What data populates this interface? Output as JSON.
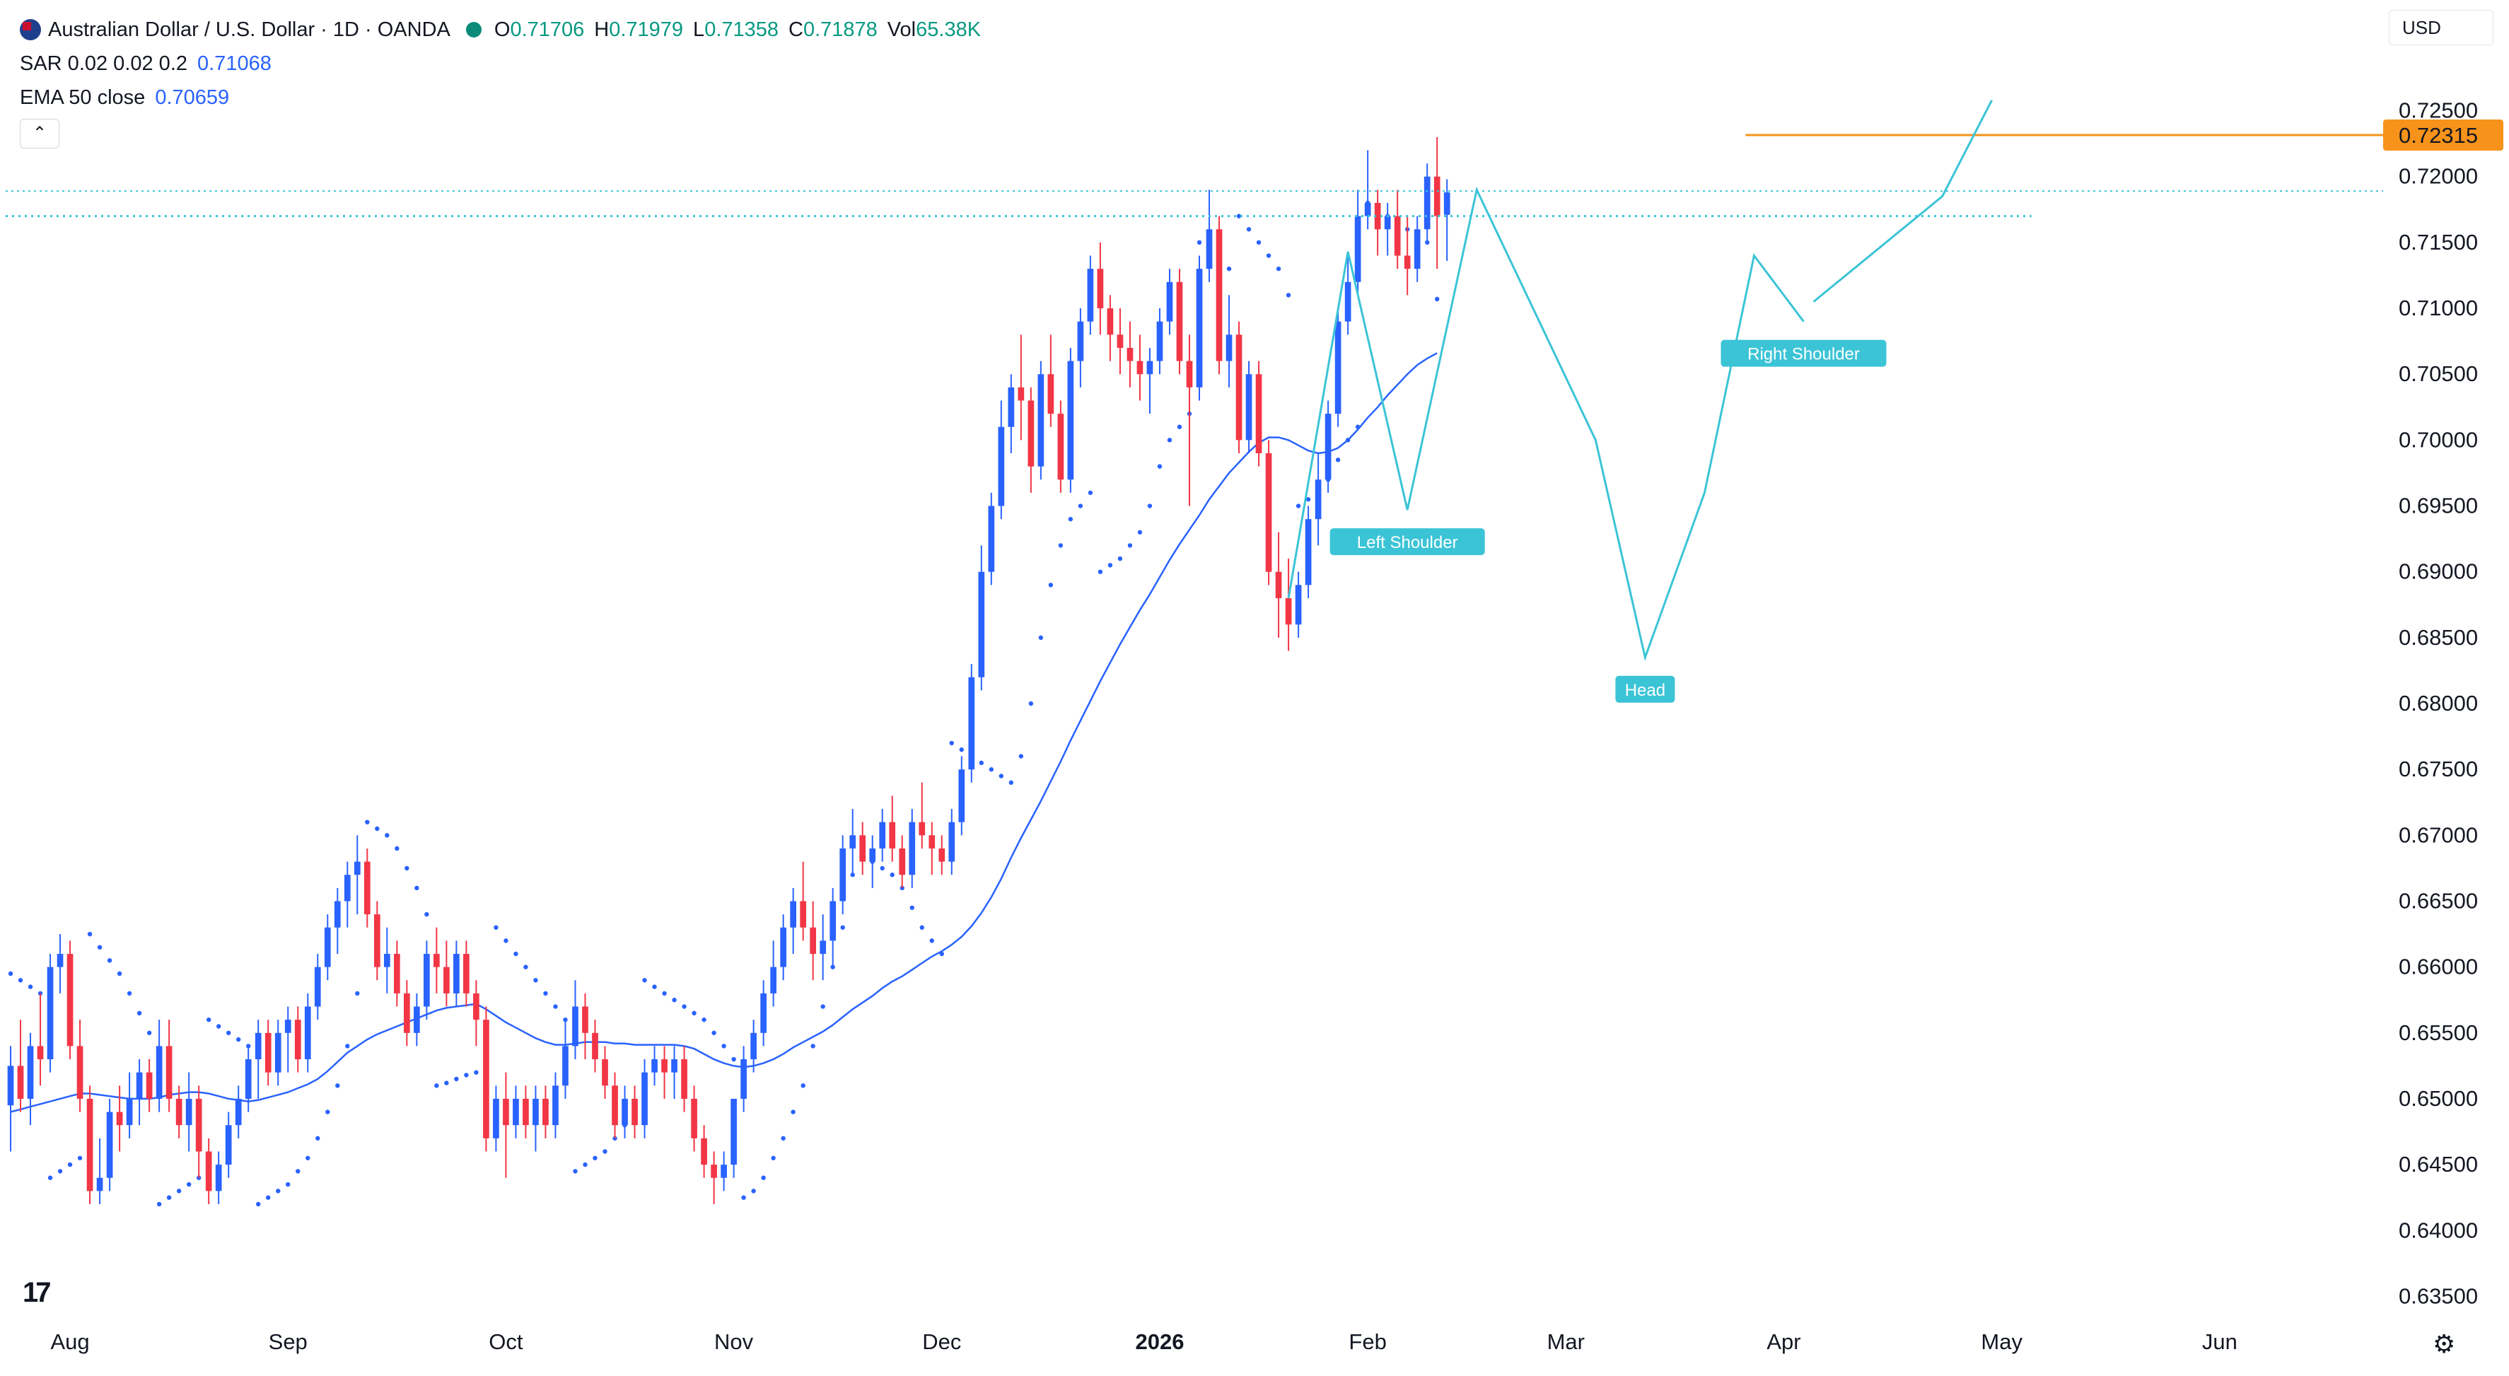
{
  "header": {
    "symbol_title": "Australian Dollar / U.S. Dollar · 1D · OANDA",
    "open_label": "O",
    "open_value": "0.71706",
    "high_label": "H",
    "high_value": "0.71979",
    "low_label": "L",
    "low_value": "0.71358",
    "close_label": "C",
    "close_value": "0.71878",
    "vol_label": "Vol",
    "vol_value": "65.38K",
    "collapse_icon": "chevron-up-icon"
  },
  "indicators": {
    "sar": {
      "name": "SAR 0.02 0.02 0.2",
      "value": "0.71068"
    },
    "ema": {
      "name": "EMA 50 close",
      "value": "0.70659"
    }
  },
  "toolbar": {
    "currency_label": "USD",
    "settings_icon": "gear-icon",
    "logo_text": "17"
  },
  "colors": {
    "up": "#2962ff",
    "down": "#f23645",
    "ema": "#2962ff",
    "sar": "#2962ff",
    "pattern": "#3bc4d6",
    "resistance": "#f7931a",
    "neckline": "#3bc4d6",
    "grid_text": "#131722"
  },
  "chart_data": {
    "type": "candlestick",
    "title": "Australian Dollar / U.S. Dollar · 1D · OANDA",
    "ylim": [
      0.6325,
      0.7275
    ],
    "price_axis_labels": [
      "0.72500",
      "0.72000",
      "0.71500",
      "0.71000",
      "0.70500",
      "0.70000",
      "0.69500",
      "0.69000",
      "0.68500",
      "0.68000",
      "0.67500",
      "0.67000",
      "0.66500",
      "0.66000",
      "0.65500",
      "0.65000",
      "0.64500",
      "0.64000",
      "0.63500"
    ],
    "time_axis_labels": [
      {
        "label": "Aug",
        "bold": false,
        "bar": 6
      },
      {
        "label": "Sep",
        "bold": false,
        "bar": 28
      },
      {
        "label": "Oct",
        "bold": false,
        "bar": 50
      },
      {
        "label": "Nov",
        "bold": false,
        "bar": 73
      },
      {
        "label": "Dec",
        "bold": false,
        "bar": 94
      },
      {
        "label": "2026",
        "bold": true,
        "bar": 116
      },
      {
        "label": "Feb",
        "bold": false,
        "bar": 137
      },
      {
        "label": "Mar",
        "bold": false,
        "bar": 157
      },
      {
        "label": "Apr",
        "bold": false,
        "bar": 179
      },
      {
        "label": "May",
        "bold": false,
        "bar": 201
      },
      {
        "label": "Jun",
        "bold": false,
        "bar": 223
      }
    ],
    "candles": [
      [
        0.6495,
        0.654,
        0.646,
        0.6525
      ],
      [
        0.6525,
        0.656,
        0.649,
        0.65
      ],
      [
        0.65,
        0.655,
        0.648,
        0.654
      ],
      [
        0.654,
        0.658,
        0.651,
        0.653
      ],
      [
        0.653,
        0.661,
        0.652,
        0.66
      ],
      [
        0.66,
        0.6625,
        0.658,
        0.661
      ],
      [
        0.661,
        0.662,
        0.653,
        0.654
      ],
      [
        0.654,
        0.656,
        0.649,
        0.65
      ],
      [
        0.65,
        0.651,
        0.642,
        0.643
      ],
      [
        0.643,
        0.647,
        0.642,
        0.644
      ],
      [
        0.644,
        0.65,
        0.643,
        0.649
      ],
      [
        0.649,
        0.651,
        0.646,
        0.648
      ],
      [
        0.648,
        0.652,
        0.647,
        0.65
      ],
      [
        0.65,
        0.653,
        0.648,
        0.652
      ],
      [
        0.652,
        0.653,
        0.649,
        0.65
      ],
      [
        0.65,
        0.656,
        0.649,
        0.654
      ],
      [
        0.654,
        0.656,
        0.649,
        0.65
      ],
      [
        0.65,
        0.651,
        0.647,
        0.648
      ],
      [
        0.648,
        0.652,
        0.646,
        0.65
      ],
      [
        0.65,
        0.651,
        0.644,
        0.646
      ],
      [
        0.646,
        0.647,
        0.642,
        0.643
      ],
      [
        0.643,
        0.646,
        0.642,
        0.645
      ],
      [
        0.645,
        0.649,
        0.644,
        0.648
      ],
      [
        0.648,
        0.651,
        0.647,
        0.65
      ],
      [
        0.65,
        0.654,
        0.649,
        0.653
      ],
      [
        0.653,
        0.656,
        0.65,
        0.655
      ],
      [
        0.655,
        0.656,
        0.651,
        0.652
      ],
      [
        0.652,
        0.656,
        0.651,
        0.655
      ],
      [
        0.655,
        0.657,
        0.652,
        0.656
      ],
      [
        0.656,
        0.657,
        0.652,
        0.653
      ],
      [
        0.653,
        0.658,
        0.652,
        0.657
      ],
      [
        0.657,
        0.661,
        0.656,
        0.66
      ],
      [
        0.66,
        0.664,
        0.659,
        0.663
      ],
      [
        0.663,
        0.666,
        0.661,
        0.665
      ],
      [
        0.665,
        0.668,
        0.663,
        0.667
      ],
      [
        0.667,
        0.67,
        0.664,
        0.668
      ],
      [
        0.668,
        0.669,
        0.663,
        0.664
      ],
      [
        0.664,
        0.665,
        0.659,
        0.66
      ],
      [
        0.66,
        0.663,
        0.658,
        0.661
      ],
      [
        0.661,
        0.662,
        0.657,
        0.658
      ],
      [
        0.658,
        0.659,
        0.654,
        0.655
      ],
      [
        0.655,
        0.658,
        0.654,
        0.657
      ],
      [
        0.657,
        0.662,
        0.656,
        0.661
      ],
      [
        0.661,
        0.663,
        0.658,
        0.66
      ],
      [
        0.66,
        0.662,
        0.657,
        0.658
      ],
      [
        0.658,
        0.662,
        0.657,
        0.661
      ],
      [
        0.661,
        0.662,
        0.657,
        0.658
      ],
      [
        0.658,
        0.659,
        0.654,
        0.656
      ],
      [
        0.656,
        0.657,
        0.646,
        0.647
      ],
      [
        0.647,
        0.651,
        0.646,
        0.65
      ],
      [
        0.65,
        0.652,
        0.644,
        0.648
      ],
      [
        0.648,
        0.651,
        0.647,
        0.65
      ],
      [
        0.65,
        0.651,
        0.647,
        0.648
      ],
      [
        0.648,
        0.651,
        0.646,
        0.65
      ],
      [
        0.65,
        0.651,
        0.647,
        0.648
      ],
      [
        0.648,
        0.652,
        0.647,
        0.651
      ],
      [
        0.651,
        0.656,
        0.65,
        0.654
      ],
      [
        0.654,
        0.659,
        0.653,
        0.657
      ],
      [
        0.657,
        0.658,
        0.653,
        0.655
      ],
      [
        0.655,
        0.656,
        0.652,
        0.653
      ],
      [
        0.653,
        0.654,
        0.65,
        0.651
      ],
      [
        0.651,
        0.652,
        0.647,
        0.648
      ],
      [
        0.648,
        0.651,
        0.647,
        0.65
      ],
      [
        0.65,
        0.651,
        0.647,
        0.648
      ],
      [
        0.648,
        0.653,
        0.647,
        0.652
      ],
      [
        0.652,
        0.654,
        0.651,
        0.653
      ],
      [
        0.653,
        0.654,
        0.65,
        0.652
      ],
      [
        0.652,
        0.654,
        0.65,
        0.653
      ],
      [
        0.653,
        0.654,
        0.649,
        0.65
      ],
      [
        0.65,
        0.651,
        0.646,
        0.647
      ],
      [
        0.647,
        0.648,
        0.644,
        0.645
      ],
      [
        0.645,
        0.646,
        0.642,
        0.644
      ],
      [
        0.644,
        0.646,
        0.643,
        0.645
      ],
      [
        0.645,
        0.65,
        0.644,
        0.65
      ],
      [
        0.65,
        0.654,
        0.649,
        0.653
      ],
      [
        0.653,
        0.656,
        0.652,
        0.655
      ],
      [
        0.655,
        0.659,
        0.654,
        0.658
      ],
      [
        0.658,
        0.662,
        0.657,
        0.66
      ],
      [
        0.66,
        0.664,
        0.659,
        0.663
      ],
      [
        0.663,
        0.666,
        0.661,
        0.665
      ],
      [
        0.665,
        0.668,
        0.662,
        0.663
      ],
      [
        0.663,
        0.665,
        0.659,
        0.661
      ],
      [
        0.661,
        0.664,
        0.659,
        0.662
      ],
      [
        0.662,
        0.666,
        0.66,
        0.665
      ],
      [
        0.665,
        0.67,
        0.664,
        0.669
      ],
      [
        0.669,
        0.672,
        0.667,
        0.67
      ],
      [
        0.67,
        0.671,
        0.667,
        0.668
      ],
      [
        0.668,
        0.67,
        0.666,
        0.669
      ],
      [
        0.669,
        0.672,
        0.668,
        0.671
      ],
      [
        0.671,
        0.673,
        0.668,
        0.669
      ],
      [
        0.669,
        0.67,
        0.666,
        0.667
      ],
      [
        0.667,
        0.672,
        0.666,
        0.671
      ],
      [
        0.671,
        0.674,
        0.669,
        0.67
      ],
      [
        0.67,
        0.671,
        0.667,
        0.669
      ],
      [
        0.669,
        0.67,
        0.667,
        0.668
      ],
      [
        0.668,
        0.672,
        0.667,
        0.671
      ],
      [
        0.671,
        0.676,
        0.67,
        0.675
      ],
      [
        0.675,
        0.683,
        0.674,
        0.682
      ],
      [
        0.682,
        0.692,
        0.681,
        0.69
      ],
      [
        0.69,
        0.696,
        0.689,
        0.695
      ],
      [
        0.695,
        0.703,
        0.694,
        0.701
      ],
      [
        0.701,
        0.705,
        0.699,
        0.704
      ],
      [
        0.704,
        0.708,
        0.7,
        0.703
      ],
      [
        0.703,
        0.704,
        0.696,
        0.698
      ],
      [
        0.698,
        0.706,
        0.697,
        0.705
      ],
      [
        0.705,
        0.708,
        0.701,
        0.702
      ],
      [
        0.702,
        0.703,
        0.696,
        0.697
      ],
      [
        0.697,
        0.707,
        0.696,
        0.706
      ],
      [
        0.706,
        0.71,
        0.704,
        0.709
      ],
      [
        0.709,
        0.714,
        0.708,
        0.713
      ],
      [
        0.713,
        0.715,
        0.708,
        0.71
      ],
      [
        0.71,
        0.711,
        0.706,
        0.708
      ],
      [
        0.708,
        0.71,
        0.705,
        0.707
      ],
      [
        0.707,
        0.709,
        0.704,
        0.706
      ],
      [
        0.706,
        0.708,
        0.703,
        0.705
      ],
      [
        0.705,
        0.707,
        0.702,
        0.706
      ],
      [
        0.706,
        0.71,
        0.705,
        0.709
      ],
      [
        0.709,
        0.713,
        0.708,
        0.712
      ],
      [
        0.712,
        0.713,
        0.705,
        0.706
      ],
      [
        0.706,
        0.708,
        0.695,
        0.704
      ],
      [
        0.704,
        0.714,
        0.703,
        0.713
      ],
      [
        0.713,
        0.719,
        0.712,
        0.716
      ],
      [
        0.716,
        0.717,
        0.705,
        0.706
      ],
      [
        0.706,
        0.711,
        0.704,
        0.708
      ],
      [
        0.708,
        0.709,
        0.699,
        0.7
      ],
      [
        0.7,
        0.706,
        0.699,
        0.705
      ],
      [
        0.705,
        0.706,
        0.698,
        0.699
      ],
      [
        0.699,
        0.7,
        0.689,
        0.69
      ],
      [
        0.69,
        0.693,
        0.685,
        0.688
      ],
      [
        0.688,
        0.691,
        0.684,
        0.686
      ],
      [
        0.686,
        0.69,
        0.685,
        0.689
      ],
      [
        0.689,
        0.695,
        0.688,
        0.694
      ],
      [
        0.694,
        0.699,
        0.692,
        0.697
      ],
      [
        0.697,
        0.703,
        0.696,
        0.702
      ],
      [
        0.702,
        0.71,
        0.701,
        0.709
      ],
      [
        0.709,
        0.714,
        0.708,
        0.712
      ],
      [
        0.712,
        0.719,
        0.711,
        0.717
      ],
      [
        0.717,
        0.722,
        0.716,
        0.718
      ],
      [
        0.718,
        0.719,
        0.714,
        0.716
      ],
      [
        0.716,
        0.718,
        0.714,
        0.717
      ],
      [
        0.717,
        0.719,
        0.713,
        0.714
      ],
      [
        0.714,
        0.717,
        0.711,
        0.713
      ],
      [
        0.713,
        0.717,
        0.712,
        0.716
      ],
      [
        0.716,
        0.721,
        0.715,
        0.72
      ],
      [
        0.72,
        0.723,
        0.713,
        0.717
      ],
      [
        0.7171,
        0.7198,
        0.7136,
        0.7188
      ]
    ],
    "ema50": [
      0.649,
      0.6492,
      0.6494,
      0.6496,
      0.6498,
      0.65,
      0.6502,
      0.6504,
      0.6504,
      0.6503,
      0.6502,
      0.6501,
      0.65,
      0.65,
      0.65,
      0.6501,
      0.6503,
      0.6504,
      0.6505,
      0.6505,
      0.6504,
      0.6502,
      0.65,
      0.6499,
      0.6498,
      0.6499,
      0.6501,
      0.6503,
      0.6505,
      0.6508,
      0.6511,
      0.6515,
      0.6521,
      0.6528,
      0.6535,
      0.654,
      0.6545,
      0.6549,
      0.6552,
      0.6555,
      0.6558,
      0.6561,
      0.6564,
      0.6567,
      0.6569,
      0.657,
      0.6571,
      0.6572,
      0.6568,
      0.6563,
      0.6558,
      0.6554,
      0.655,
      0.6546,
      0.6543,
      0.6541,
      0.6541,
      0.6542,
      0.6543,
      0.6543,
      0.6543,
      0.6542,
      0.6542,
      0.6541,
      0.6541,
      0.6541,
      0.6541,
      0.6541,
      0.654,
      0.6538,
      0.6534,
      0.653,
      0.6527,
      0.6525,
      0.6524,
      0.6525,
      0.6527,
      0.653,
      0.6534,
      0.6539,
      0.6543,
      0.6547,
      0.6551,
      0.6556,
      0.6562,
      0.6568,
      0.6573,
      0.6578,
      0.6584,
      0.6589,
      0.6593,
      0.6598,
      0.6603,
      0.6608,
      0.6612,
      0.6617,
      0.6623,
      0.6631,
      0.6641,
      0.6653,
      0.6667,
      0.6683,
      0.6698,
      0.6712,
      0.6726,
      0.6741,
      0.6756,
      0.6772,
      0.6787,
      0.6802,
      0.6817,
      0.6831,
      0.6845,
      0.6858,
      0.6871,
      0.6883,
      0.6896,
      0.6909,
      0.6921,
      0.6932,
      0.6943,
      0.6955,
      0.6965,
      0.6975,
      0.6983,
      0.6991,
      0.6998,
      0.7002,
      0.7002,
      0.7,
      0.6996,
      0.6992,
      0.699,
      0.6991,
      0.6994,
      0.7,
      0.7008,
      0.7017,
      0.7025,
      0.7034,
      0.7042,
      0.705,
      0.7057,
      0.7062,
      0.7066
    ],
    "sar": [
      0.6595,
      0.659,
      0.6585,
      0.658,
      0.644,
      0.6445,
      0.645,
      0.6455,
      0.6625,
      0.6615,
      0.6605,
      0.6595,
      0.658,
      0.6565,
      0.655,
      0.642,
      0.6425,
      0.643,
      0.6435,
      0.644,
      0.656,
      0.6555,
      0.655,
      0.6545,
      0.654,
      0.642,
      0.6425,
      0.643,
      0.6435,
      0.6445,
      0.6455,
      0.647,
      0.649,
      0.651,
      0.654,
      0.658,
      0.671,
      0.6705,
      0.67,
      0.669,
      0.6675,
      0.666,
      0.664,
      0.651,
      0.6512,
      0.6515,
      0.6518,
      0.652,
      0.6525,
      0.663,
      0.662,
      0.661,
      0.66,
      0.659,
      0.658,
      0.657,
      0.656,
      0.6445,
      0.645,
      0.6455,
      0.646,
      0.647,
      0.648,
      0.6495,
      0.659,
      0.6585,
      0.658,
      0.6575,
      0.657,
      0.6565,
      0.656,
      0.655,
      0.654,
      0.653,
      0.6425,
      0.643,
      0.644,
      0.6455,
      0.647,
      0.649,
      0.651,
      0.654,
      0.657,
      0.66,
      0.663,
      0.667,
      0.6685,
      0.668,
      0.6675,
      0.667,
      0.666,
      0.6645,
      0.663,
      0.662,
      0.661,
      0.677,
      0.6765,
      0.676,
      0.6755,
      0.675,
      0.6745,
      0.674,
      0.676,
      0.68,
      0.685,
      0.689,
      0.692,
      0.694,
      0.695,
      0.696,
      0.69,
      0.6905,
      0.691,
      0.692,
      0.693,
      0.695,
      0.698,
      0.7,
      0.701,
      0.702,
      0.715,
      0.7145,
      0.714,
      0.713,
      0.717,
      0.716,
      0.715,
      0.714,
      0.713,
      0.711,
      0.695,
      0.6955,
      0.696,
      0.697,
      0.6985,
      0.7,
      0.701,
      0.718,
      0.7175,
      0.717,
      0.7165,
      0.716,
      0.7155,
      0.715,
      0.7107
    ],
    "levels": {
      "resistance": 0.72315,
      "resistance_label": "0.72315",
      "dotted_line_1": 0.7189,
      "dotted_line_2": 0.717
    },
    "pattern_points": [
      {
        "bar": 129,
        "price": 0.688,
        "label": ""
      },
      {
        "bar": 135,
        "price": 0.7143,
        "label": ""
      },
      {
        "bar": 141,
        "price": 0.6947,
        "label": "Left Shoulder"
      },
      {
        "bar": 148,
        "price": 0.719,
        "label": ""
      },
      {
        "bar": 160,
        "price": 0.7,
        "label": ""
      },
      {
        "bar": 165,
        "price": 0.6835,
        "label": "Head"
      },
      {
        "bar": 171,
        "price": 0.696,
        "label": ""
      },
      {
        "bar": 176,
        "price": 0.714,
        "label": ""
      },
      {
        "bar": 181,
        "price": 0.709,
        "label": "Right Shoulder"
      }
    ],
    "projection_line": {
      "from_bar": 182,
      "from_price": 0.7105,
      "to_bar": 195,
      "to_price": 0.7185,
      "peak_bar": 200,
      "peak_price": 0.7258
    }
  }
}
